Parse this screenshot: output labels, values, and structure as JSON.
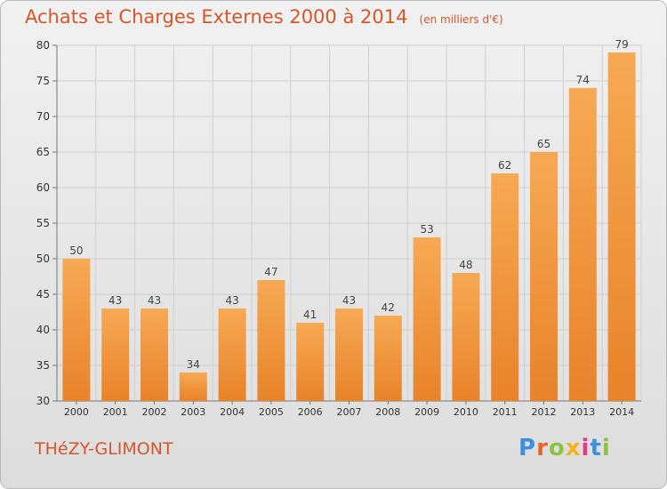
{
  "title": "Achats et Charges Externes 2000 à 2014",
  "unit_note": "(en milliers d'€)",
  "commune": "THéZY-GLIMONT",
  "logo": {
    "text": "Proxiti",
    "colors": [
      "#3d8fe0",
      "#e8632c",
      "#8bc43f",
      "#f2b324",
      "#e03b8a",
      "#3d8fe0",
      "#8bc43f"
    ]
  },
  "colors": {
    "bar_light": "#f7a954",
    "bar_dark": "#e8832a",
    "title": "#d4572a",
    "grid": "#cfcfcf"
  },
  "chart_data": {
    "type": "bar",
    "title": "Achats et Charges Externes 2000 à 2014",
    "categories": [
      "2000",
      "2001",
      "2002",
      "2003",
      "2004",
      "2005",
      "2006",
      "2007",
      "2008",
      "2009",
      "2010",
      "2011",
      "2012",
      "2013",
      "2014"
    ],
    "values": [
      50,
      43,
      43,
      34,
      43,
      47,
      41,
      43,
      42,
      53,
      48,
      62,
      65,
      74,
      79
    ],
    "ylim": [
      30,
      80
    ],
    "yticks": [
      30,
      35,
      40,
      45,
      50,
      55,
      60,
      65,
      70,
      75,
      80
    ],
    "grid": true,
    "data_labels": true
  }
}
